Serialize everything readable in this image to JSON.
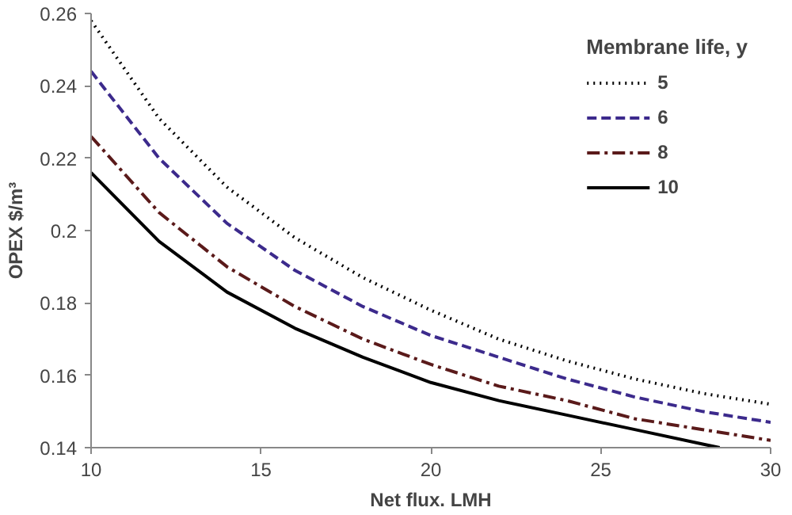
{
  "chart_data": {
    "type": "line",
    "xlabel": "Net flux. LMH",
    "ylabel": "OPEX $/m³",
    "legend_title": "Membrane life, y",
    "legend": "top right",
    "grid": false,
    "marker": "none",
    "xlim": [
      10,
      30
    ],
    "xticks": [
      10,
      15,
      20,
      25,
      30
    ],
    "ylim": [
      0.14,
      0.26
    ],
    "yticks": [
      0.14,
      0.16,
      0.18,
      0.2,
      0.22,
      0.24,
      0.26
    ],
    "series": [
      {
        "name": "5",
        "color": "#000000",
        "line_style": "dotted",
        "x": [
          10,
          12,
          14,
          16,
          18,
          20,
          22,
          24,
          26,
          28,
          30
        ],
        "values": [
          0.258,
          0.231,
          0.212,
          0.198,
          0.187,
          0.178,
          0.17,
          0.164,
          0.159,
          0.155,
          0.152
        ]
      },
      {
        "name": "6",
        "color": "#3c2a8c",
        "line_style": "dashed",
        "x": [
          10,
          12,
          14,
          16,
          18,
          20,
          22,
          24,
          26,
          28,
          30
        ],
        "values": [
          0.244,
          0.22,
          0.202,
          0.189,
          0.179,
          0.171,
          0.165,
          0.159,
          0.154,
          0.15,
          0.147
        ]
      },
      {
        "name": "8",
        "color": "#5a1a1a",
        "line_style": "dashdot",
        "x": [
          10,
          12,
          14,
          16,
          18,
          20,
          22,
          24,
          26,
          28,
          30
        ],
        "values": [
          0.226,
          0.205,
          0.19,
          0.179,
          0.17,
          0.163,
          0.157,
          0.153,
          0.148,
          0.145,
          0.142
        ]
      },
      {
        "name": "10",
        "color": "#000000",
        "line_style": "solid",
        "x": [
          10,
          12,
          14,
          16,
          18,
          20,
          22,
          24,
          26,
          28,
          28.5
        ],
        "values": [
          0.216,
          0.197,
          0.183,
          0.173,
          0.165,
          0.158,
          0.153,
          0.149,
          0.145,
          0.141,
          0.14
        ]
      }
    ]
  }
}
